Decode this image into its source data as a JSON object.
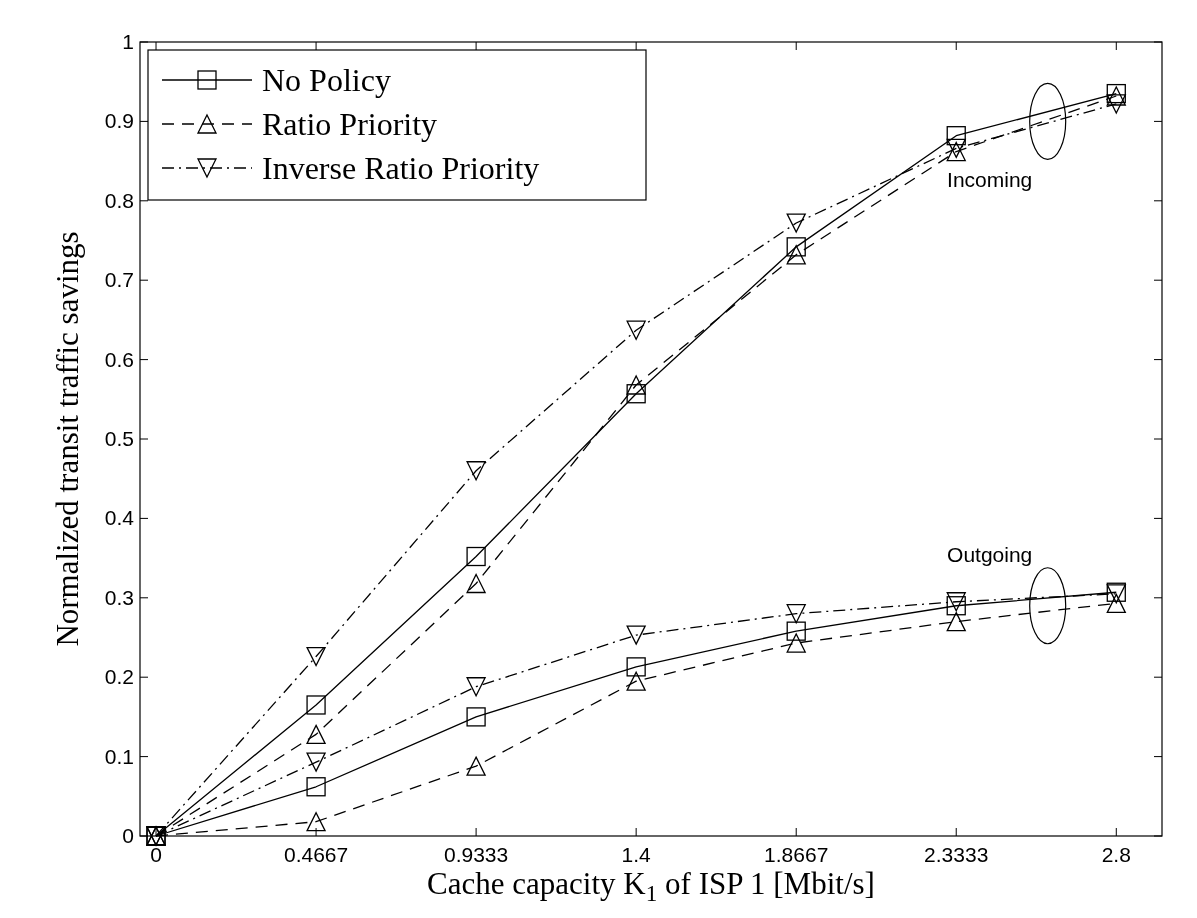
{
  "chart_data": {
    "type": "line",
    "xlabel": "Cache capacity K$_{1}$ of ISP 1 [Mbit/s]",
    "ylabel": "Normalized transit traffic savings",
    "x": [
      0,
      0.4667,
      0.9333,
      1.4,
      1.8667,
      2.3333,
      2.8
    ],
    "xlim": [
      -0.0467,
      2.9333
    ],
    "xticks": [
      0,
      0.4667,
      0.9333,
      1.4,
      1.8667,
      2.3333,
      2.8
    ],
    "ylim": [
      0,
      1
    ],
    "yticks": [
      0,
      0.1,
      0.2,
      0.3,
      0.4,
      0.5,
      0.6,
      0.7,
      0.8,
      0.9,
      1
    ],
    "grid": false,
    "legend": "top left",
    "series": [
      {
        "name": "No Policy",
        "color": "#000000",
        "marker": "square",
        "line_style": "solid",
        "values": [
          0,
          0.165,
          0.352,
          0.557,
          0.742,
          0.882,
          0.935
        ]
      },
      {
        "name": "Ratio Priority",
        "color": "#000000",
        "marker": "triangle",
        "line_style": "dashed",
        "values": [
          0,
          0.128,
          0.318,
          0.568,
          0.732,
          0.862,
          0.932
        ]
      },
      {
        "name": "Inverse Ratio Priority",
        "color": "#000000",
        "marker": "triangle-down",
        "line_style": "dashdot",
        "values": [
          0,
          0.226,
          0.46,
          0.637,
          0.772,
          0.866,
          0.922
        ]
      },
      {
        "color": "#000000",
        "marker": "square",
        "line_style": "solid",
        "values": [
          0,
          0.062,
          0.15,
          0.213,
          0.258,
          0.29,
          0.307
        ]
      },
      {
        "color": "#000000",
        "marker": "triangle",
        "line_style": "dashed",
        "values": [
          0,
          0.018,
          0.088,
          0.195,
          0.243,
          0.27,
          0.293
        ]
      },
      {
        "color": "#000000",
        "marker": "triangle-down",
        "line_style": "dashdot",
        "values": [
          0,
          0.093,
          0.188,
          0.253,
          0.28,
          0.295,
          0.305
        ]
      }
    ],
    "annotations": [
      {
        "text": "Incoming",
        "x": 2.6,
        "y": 0.9
      },
      {
        "text": "Outgoing",
        "x": 2.6,
        "y": 0.29
      }
    ]
  }
}
